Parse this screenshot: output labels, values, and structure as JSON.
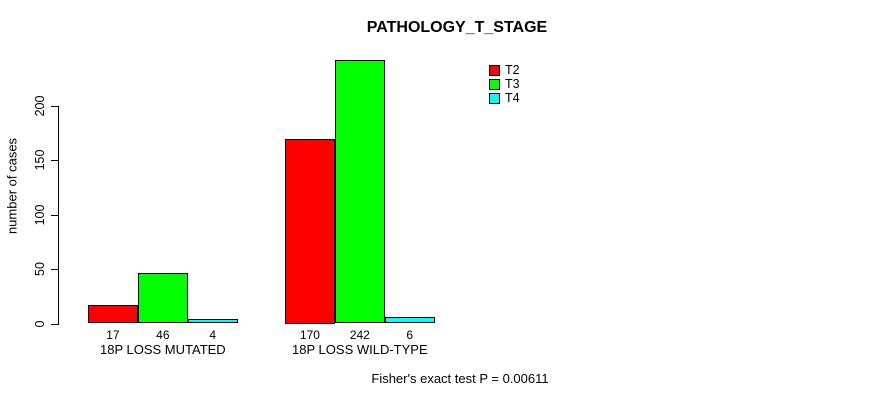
{
  "page": {
    "background": "#ffffff",
    "text_color": "#000000"
  },
  "chart_data": {
    "type": "bar",
    "title": "PATHOLOGY_T_STAGE",
    "categories": [
      "18P LOSS MUTATED",
      "18P LOSS WILD-TYPE"
    ],
    "series": [
      {
        "name": "T2",
        "color": "#ff0000",
        "values": [
          17,
          170
        ]
      },
      {
        "name": "T3",
        "color": "#00ff00",
        "values": [
          46,
          242
        ]
      },
      {
        "name": "T4",
        "color": "#00ffff",
        "values": [
          4,
          6
        ]
      }
    ],
    "ylabel": "number of cases",
    "xlabel": "",
    "yticks": [
      0,
      50,
      100,
      150,
      200
    ],
    "ylim": [
      0,
      250
    ],
    "grid": false,
    "show_value_labels": true,
    "bar_border_color": "#000000",
    "legend_position": "top-right",
    "annotation": "Fisher's exact test P = 0.00611"
  }
}
